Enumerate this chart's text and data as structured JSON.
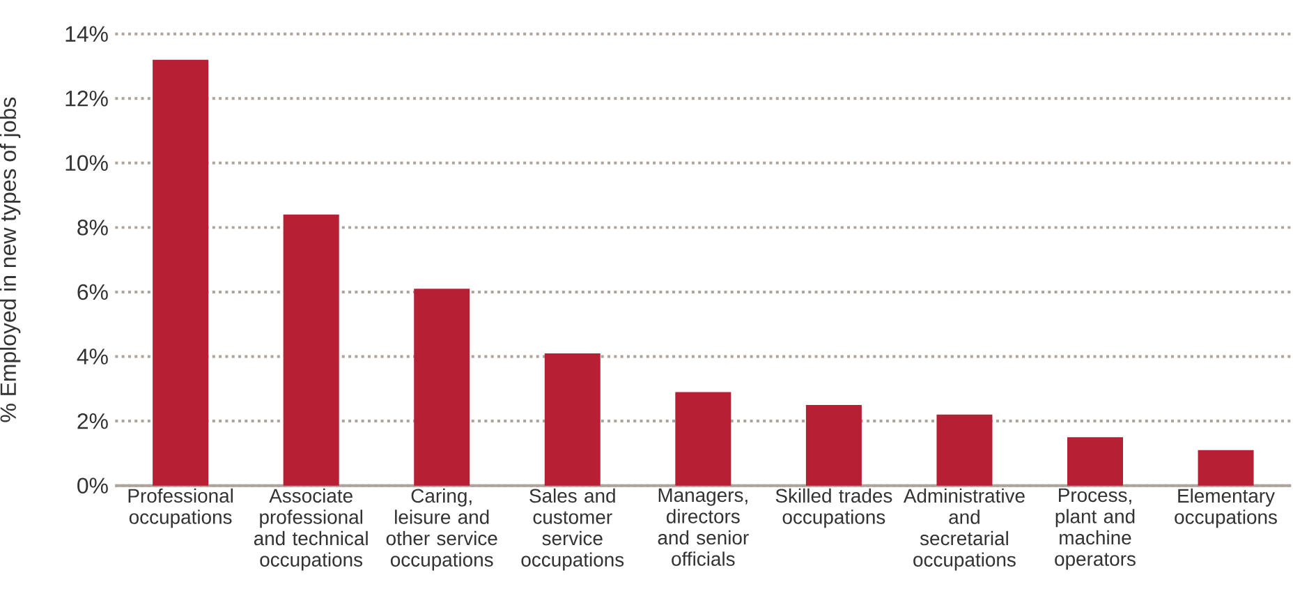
{
  "chart_data": {
    "type": "bar",
    "ylabel": "% Employed in new types of jobs",
    "categories": [
      "Professional occupations",
      "Associate professional and technical occupations",
      "Caring, leisure and other service occupations",
      "Sales and customer service occupations",
      "Managers, directors and senior officials",
      "Skilled trades occupations",
      "Administrative and secretarial occupations",
      "Process, plant and machine operators",
      "Elementary occupations"
    ],
    "values": [
      13.2,
      8.4,
      6.1,
      4.1,
      2.9,
      2.5,
      2.2,
      1.5,
      1.1
    ],
    "color": "#b71f34",
    "ylim": [
      0,
      14
    ],
    "yticks": [
      {
        "value": 0,
        "label": "0%"
      },
      {
        "value": 2,
        "label": "2%"
      },
      {
        "value": 4,
        "label": "4%"
      },
      {
        "value": 6,
        "label": "6%"
      },
      {
        "value": 8,
        "label": "8%"
      },
      {
        "value": 10,
        "label": "10%"
      },
      {
        "value": 12,
        "label": "12%"
      },
      {
        "value": 14,
        "label": "14%"
      }
    ],
    "grid": "y"
  }
}
